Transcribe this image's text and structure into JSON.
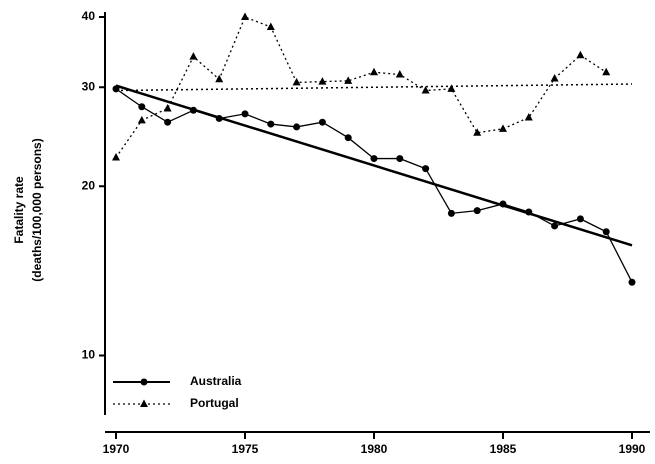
{
  "chart_data": {
    "type": "line",
    "y_label": [
      "Fatality rate",
      "(deaths/100,000 persons)"
    ],
    "x": [
      1970,
      1971,
      1972,
      1973,
      1974,
      1975,
      1976,
      1977,
      1978,
      1979,
      1980,
      1981,
      1982,
      1983,
      1984,
      1985,
      1986,
      1987,
      1988,
      1989,
      1990
    ],
    "series": [
      {
        "name": "Australia",
        "color": "#000000",
        "marker": "circle",
        "dash": "solid",
        "values": [
          29.8,
          27.7,
          26.0,
          27.3,
          26.4,
          26.9,
          25.8,
          25.5,
          26.0,
          24.4,
          22.4,
          22.4,
          21.5,
          17.9,
          18.1,
          18.6,
          18.0,
          17.0,
          17.5,
          16.6,
          13.5
        ],
        "trend": {
          "x": [
            1970,
            1990
          ],
          "values": [
            30.2,
            15.7
          ]
        }
      },
      {
        "name": "Portugal",
        "color": "#000000",
        "marker": "triangle",
        "dash": "dotted",
        "values": [
          22.5,
          26.2,
          27.5,
          34.0,
          31.0,
          40.0,
          38.4,
          30.6,
          30.7,
          30.8,
          31.9,
          31.6,
          29.6,
          29.8,
          24.9,
          25.3,
          26.5,
          31.1,
          34.2,
          31.9,
          null
        ],
        "trend": {
          "x": [
            1970,
            1990
          ],
          "values": [
            29.6,
            30.4
          ]
        }
      }
    ],
    "xlim": [
      1970,
      1990
    ],
    "xticks": [
      1970,
      1975,
      1980,
      1985,
      1990
    ],
    "ylim": [
      8,
      40
    ],
    "yticks": [
      10,
      20,
      30,
      40
    ],
    "log_y": true,
    "legend": "lower left"
  }
}
